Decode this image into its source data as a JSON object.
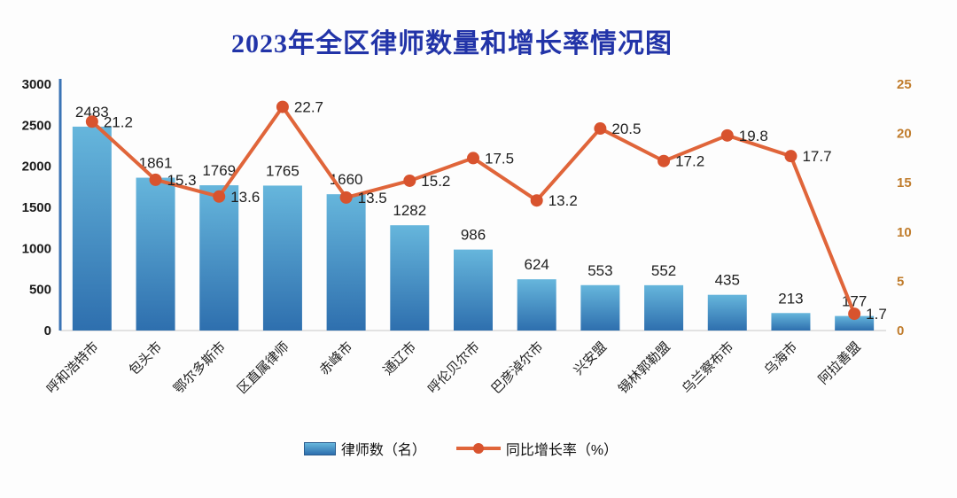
{
  "title": "2023年全区律师数量和增长率情况图",
  "legend": {
    "bar_label": "律师数（名）",
    "line_label": "同比增长率（%）"
  },
  "colors": {
    "title": "#2234a8",
    "bar_gradient_top": "#66b6dc",
    "bar_gradient_bottom": "#2e6fae",
    "line": "#e0653a",
    "marker": "#d8532e",
    "left_axis_text": "#1a1a1a",
    "right_axis_text": "#c07c2c",
    "axis_line": "#3a74b5"
  },
  "chart_data": {
    "type": "bar+line",
    "title": "2023年全区律师数量和增长率情况图",
    "categories": [
      "呼和浩特市",
      "包头市",
      "鄂尔多斯市",
      "区直属律师",
      "赤峰市",
      "通辽市",
      "呼伦贝尔市",
      "巴彦淖尔市",
      "兴安盟",
      "锡林郭勒盟",
      "乌兰察布市",
      "乌海市",
      "阿拉善盟"
    ],
    "series": [
      {
        "name": "律师数（名）",
        "type": "bar",
        "axis": "left",
        "values": [
          2483,
          1861,
          1769,
          1765,
          1660,
          1282,
          986,
          624,
          553,
          552,
          435,
          213,
          177
        ]
      },
      {
        "name": "同比增长率（%）",
        "type": "line",
        "axis": "right",
        "values": [
          21.2,
          15.3,
          13.6,
          22.7,
          13.5,
          15.2,
          17.5,
          13.2,
          20.5,
          17.2,
          19.8,
          17.7,
          1.7
        ]
      }
    ],
    "left_axis": {
      "min": 0,
      "max": 3000,
      "step": 500,
      "ticks": [
        0,
        500,
        1000,
        1500,
        2000,
        2500,
        3000
      ]
    },
    "right_axis": {
      "min": 0,
      "max": 25,
      "step": 5,
      "ticks": [
        0,
        5,
        10,
        15,
        20,
        25
      ]
    },
    "grid": false,
    "legend_position": "bottom",
    "category_label_rotation": -45
  }
}
